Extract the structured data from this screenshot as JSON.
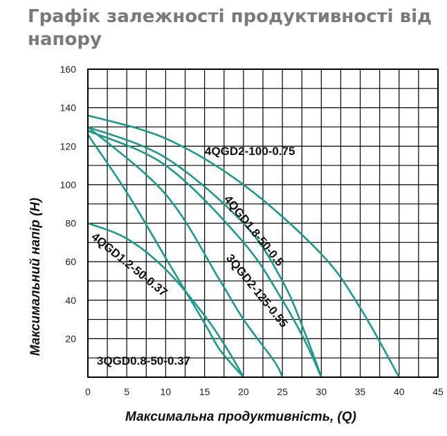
{
  "chart_data": {
    "type": "line",
    "title": "Графік залежності продуктивності від напору",
    "xlabel": "Максимальна продуктивність, (Q)",
    "ylabel": "Максимальний напір (Н)",
    "xlim": [
      0,
      45
    ],
    "ylim": [
      0,
      160
    ],
    "x_ticks": [
      0,
      5,
      10,
      15,
      20,
      25,
      30,
      35,
      40,
      45
    ],
    "y_ticks": [
      20,
      40,
      60,
      80,
      100,
      120,
      140,
      160
    ],
    "grid": true,
    "line_color": "#1a9a8c",
    "series": [
      {
        "name": "4QGD2-100-0.75",
        "x": [
          0,
          10,
          20,
          30,
          35,
          40
        ],
        "y": [
          136,
          124,
          100,
          64,
          36,
          0
        ]
      },
      {
        "name": "4QGD1.8-50-0.5",
        "x": [
          0,
          10,
          20,
          25,
          28,
          30
        ],
        "y": [
          130,
          114,
          80,
          50,
          22,
          0
        ]
      },
      {
        "name": "3QGD2-125-0.55",
        "x": [
          0,
          10,
          20,
          25,
          28,
          30
        ],
        "y": [
          128,
          110,
          70,
          40,
          18,
          0
        ]
      },
      {
        "name": "4QGD1.2-50-0.37",
        "x": [
          0,
          10,
          17,
          20,
          24,
          25
        ],
        "y": [
          130,
          95,
          50,
          30,
          8,
          0
        ]
      },
      {
        "name": "3QGD0.8-50-0.37",
        "x": [
          0,
          5,
          10,
          15,
          18,
          20
        ],
        "y": [
          80,
          72,
          56,
          32,
          14,
          0
        ]
      },
      {
        "name": "",
        "x": [
          0,
          5,
          10,
          15,
          17,
          20
        ],
        "y": [
          126,
          96,
          62,
          28,
          14,
          0
        ]
      }
    ]
  }
}
